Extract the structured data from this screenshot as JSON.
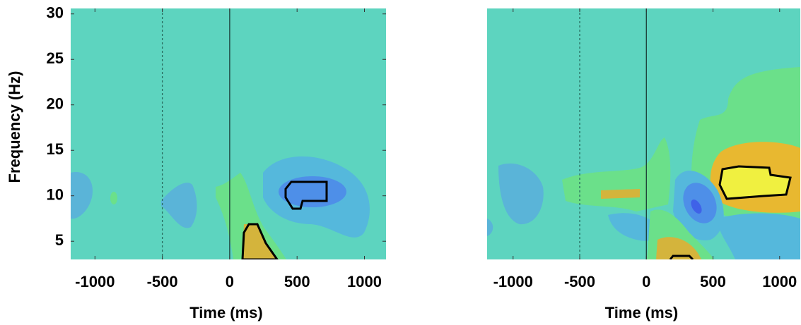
{
  "chart_data": [
    {
      "type": "heatmap",
      "x_label": "Time (ms)",
      "y_label": "Frequency (Hz)",
      "xlim": [
        -1180,
        1160
      ],
      "ylim": [
        3,
        30.6
      ],
      "xticks": [
        -1000,
        -500,
        0,
        500,
        1000
      ],
      "yticks": [
        5,
        10,
        15,
        20,
        25,
        30
      ],
      "background_color": "#5dd4bf",
      "vlines": [
        {
          "x": -500,
          "style": "dashed"
        },
        {
          "x": 0,
          "style": "solid"
        }
      ]
    },
    {
      "type": "heatmap",
      "x_label": "Time (ms)",
      "xlim": [
        -1195,
        1155
      ],
      "ylim": [
        3,
        30.6
      ],
      "xticks": [
        -1000,
        -500,
        0,
        500,
        1000
      ],
      "background_color": "#5dd4bf",
      "vlines": [
        {
          "x": -500,
          "style": "dashed"
        },
        {
          "x": 0,
          "style": "solid"
        }
      ]
    }
  ]
}
